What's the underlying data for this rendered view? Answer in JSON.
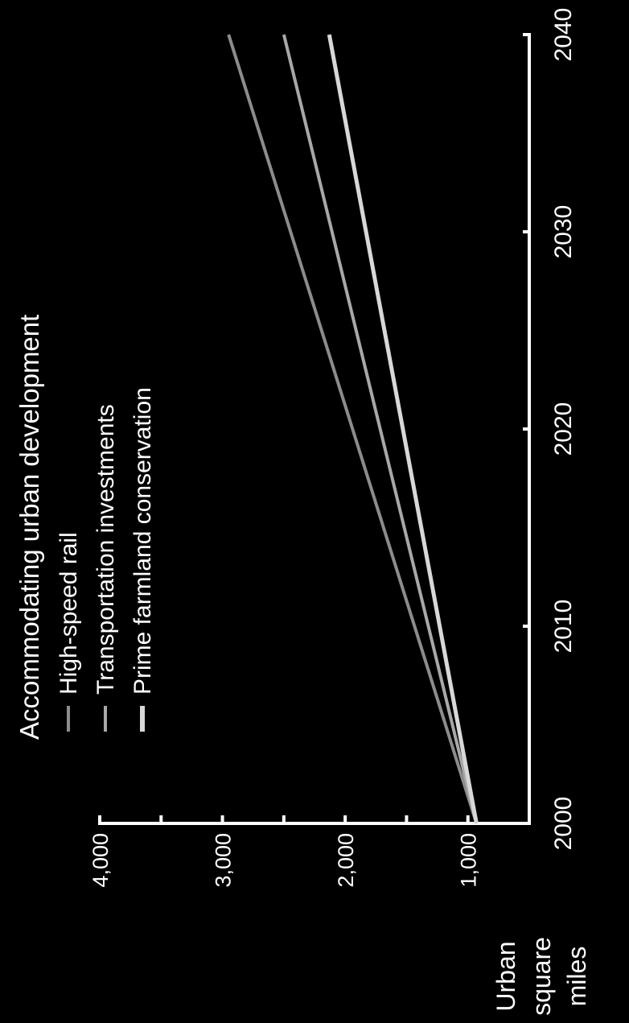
{
  "chart_data": {
    "type": "line",
    "title": "Accommodating urban development",
    "xlabel": "",
    "ylabel": [
      "Urban",
      "square",
      "miles"
    ],
    "x": [
      2000,
      2040
    ],
    "xlim": [
      2000,
      2040
    ],
    "ylim": [
      500,
      4000
    ],
    "xticks": [
      2000,
      2010,
      2020,
      2030,
      2040
    ],
    "xtick_labels": [
      "2000",
      "2010",
      "2020",
      "2030",
      "2040"
    ],
    "yticks": [
      1000,
      2000,
      3000,
      4000
    ],
    "ytick_labels": [
      "1,000",
      "2,000",
      "3,000",
      "4,000"
    ],
    "grid": false,
    "legend_position": "top-left",
    "series": [
      {
        "name": "High-speed rail",
        "values": [
          930,
          2950
        ],
        "color": "#8c8c8c"
      },
      {
        "name": "Transportation investments",
        "values": [
          930,
          2500
        ],
        "color": "#a8a8a8"
      },
      {
        "name": "Prime farmland conservation",
        "values": [
          930,
          2130
        ],
        "color": "#d8d8d8"
      }
    ]
  }
}
